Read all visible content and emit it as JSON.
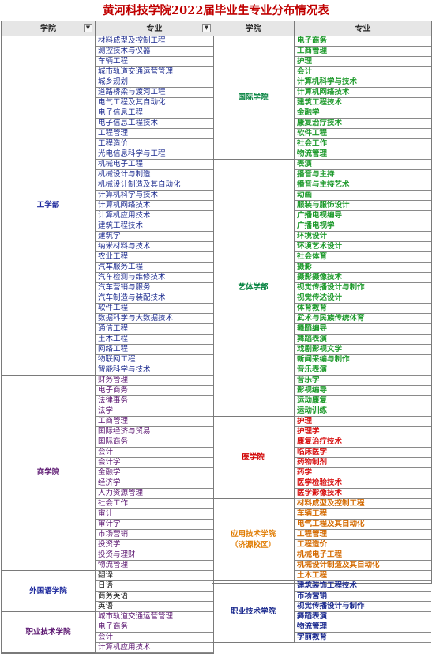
{
  "title": "黄河科技学院2022届毕业生专业分布情况表",
  "headers": {
    "college": "学院",
    "major": "专业",
    "filter_glyph": "▼"
  },
  "colors": {
    "title": "#c00000",
    "header_bg": "#e6e6e6",
    "left_blue": "#1f2b9e",
    "left_purple": "#5b1670",
    "left_text_blue": "#1c2b8f",
    "college_green": "#00803c",
    "college_red": "#d00000",
    "college_orange": "#e07b00",
    "college_navy": "#1c2b8f",
    "major_green": "#1e9a2c",
    "major_red": "#d81010",
    "major_orange": "#d46a00"
  },
  "left_groups": [
    {
      "college": "工学部",
      "color": "#1f2b9e",
      "major_color": "#1c2b8f",
      "majors": [
        "材料成型及控制工程",
        "测控技术与仪器",
        "车辆工程",
        "城市轨道交通运营管理",
        "城乡规划",
        "道路桥梁与渡河工程",
        "电气工程及其自动化",
        "电子信息工程",
        "电子信息工程技术",
        "工程管理",
        "工程造价",
        "光电信息科学与工程",
        "机械电子工程",
        "机械设计与制造",
        "机械设计制造及其自动化",
        "计算机科学与技术",
        "计算机网络技术",
        "计算机应用技术",
        "建筑工程技术",
        "建筑学",
        "纳米材料与技术",
        "农业工程",
        "汽车服务工程",
        "汽车检测与维修技术",
        "汽车营销与服务",
        "汽车制造与装配技术",
        "软件工程",
        "数据科学与大数据技术",
        "通信工程",
        "土木工程",
        "网络工程",
        "物联网工程",
        "智能科学与技术"
      ]
    },
    {
      "college": "商学院",
      "color": "#5b1670",
      "major_color": "#5b1670",
      "majors": [
        "财务管理",
        "电子商务",
        "法律事务",
        "法学",
        "工商管理",
        "国际经济与贸易",
        "国际商务",
        "会计",
        "会计学",
        "金融学",
        "经济学",
        "人力资源管理",
        "社会工作",
        "审计",
        "审计学",
        "市场营销",
        "投资学",
        "投资与理财",
        "物流管理"
      ]
    },
    {
      "college": "外国语学院",
      "color": "#1f2b9e",
      "major_color": "#111111",
      "majors": [
        "翻译",
        "日语",
        "商务英语",
        "英语"
      ]
    },
    {
      "college": "职业技术学院",
      "color": "#5b1670",
      "major_color": "#5b1670",
      "majors": [
        "城市轨道交通运营管理",
        "电子商务",
        "会计",
        "计算机应用技术"
      ]
    }
  ],
  "right_groups": [
    {
      "college": "国际学院",
      "color": "#00803c",
      "major_color": "#1e9a2c",
      "majors": [
        "电子商务",
        "工商管理",
        "护理",
        "会计",
        "计算机科学与技术",
        "计算机网络技术",
        "建筑工程技术",
        "金融学",
        "康复治疗技术",
        "软件工程",
        "社会工作",
        "物流管理"
      ]
    },
    {
      "college": "艺体学部",
      "color": "#00803c",
      "major_color": "#1e9a2c",
      "majors": [
        "表演",
        "播音与主持",
        "播音与主持艺术",
        "动画",
        "服装与服饰设计",
        "广播电视编导",
        "广播电视学",
        "环境设计",
        "环境艺术设计",
        "社会体育",
        "摄影",
        "摄影摄像技术",
        "视觉传播设计与制作",
        "视觉传达设计",
        "体育教育",
        "武术与民族传统体育",
        "舞蹈编导",
        "舞蹈表演",
        "戏剧影视文学",
        "新闻采编与制作",
        "音乐表演",
        "音乐学",
        "影视编导",
        "运动康复",
        "运动训练"
      ]
    },
    {
      "college": "医学院",
      "color": "#d00000",
      "major_color": "#d81010",
      "majors": [
        "护理",
        "护理学",
        "康复治疗技术",
        "临床医学",
        "药物制剂",
        "药学",
        "医学检验技术",
        "医学影像技术"
      ]
    },
    {
      "college": "应用技术学院\n（济源校区）",
      "color": "#e07b00",
      "major_color": "#d46a00",
      "majors": [
        "材料成型及控制工程",
        "车辆工程",
        "电气工程及其自动化",
        "工程管理",
        "工程造价",
        "机械电子工程",
        "机械设计制造及其自动化",
        "土木工程"
      ]
    },
    {
      "college": "职业技术学院",
      "color": "#1c2b8f",
      "major_color": "#1c2b8f",
      "majors": [
        "建筑装饰工程技术",
        "市场营销",
        "视觉传播设计与制作",
        "舞蹈表演",
        "物流管理",
        "学前教育"
      ]
    }
  ]
}
